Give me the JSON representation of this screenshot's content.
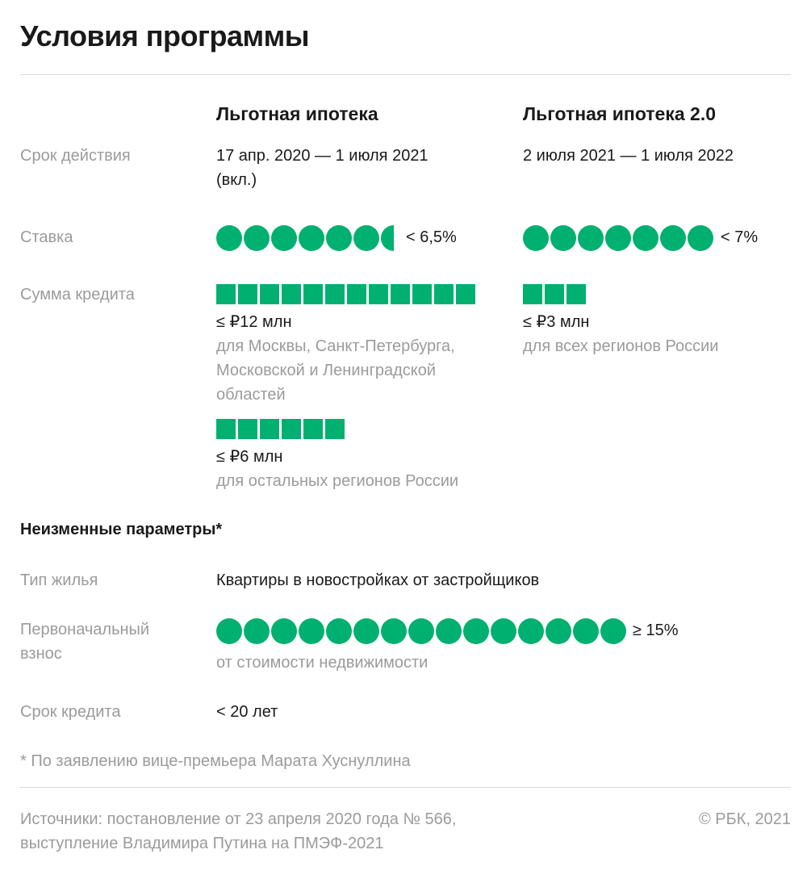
{
  "title": "Условия программы",
  "columns": {
    "program1": "Льготная ипотека",
    "program2": "Льготная ипотека 2.0"
  },
  "rows": {
    "term": {
      "label": "Срок действия",
      "program1_line1": "17 апр. 2020 — 1 июля 2021",
      "program1_line2": "(вкл.)",
      "program2": "2 июля 2021 — 1 июля 2022"
    },
    "rate": {
      "label": "Ставка",
      "program1_value": "< 6,5%",
      "program2_value": "< 7%",
      "program1_dots": 6.5,
      "program2_dots": 7
    },
    "loan_amount": {
      "label": "Сумма кредита",
      "program1_main_amount": "≤ ₽12 млн",
      "program1_main_note_line1": "для Москвы, Санкт-Петербурга,",
      "program1_main_note_line2": "Московской и Ленинградской",
      "program1_main_note_line3": "областей",
      "program1_main_squares": 12,
      "program1_other_amount": "≤ ₽6 млн",
      "program1_other_note": "для остальных регионов России",
      "program1_other_squares": 6,
      "program2_amount": "≤ ₽3 млн",
      "program2_note": "для всех регионов России",
      "program2_squares": 3
    }
  },
  "unchanged": {
    "heading": "Неизменные параметры*",
    "housing": {
      "label": "Тип жилья",
      "value": "Квартиры в новостройках от застройщиков"
    },
    "down_payment": {
      "label_line1": "Первоначальный",
      "label_line2": "взнос",
      "value": "≥ 15%",
      "note": "от стоимости недвижимости",
      "dots": 15
    },
    "loan_term": {
      "label": "Срок кредита",
      "value": "< 20 лет"
    }
  },
  "footnote": "* По заявлению вице-премьера Марата Хуснуллина",
  "sources_line1": "Источники: постановление от 23 апреля 2020 года № 566,",
  "sources_line2": "выступление Владимира Путина на ПМЭФ-2021",
  "copyright": "© РБК, 2021",
  "colors": {
    "accent": "#00b070",
    "muted": "#9b9b9b",
    "text": "#1a1a1a",
    "rule": "#d9d9d9"
  }
}
